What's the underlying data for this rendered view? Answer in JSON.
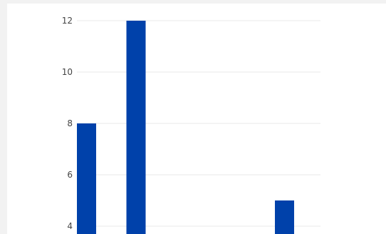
{
  "chart_data": {
    "type": "bar",
    "title": "",
    "xlabel": "",
    "ylabel": "",
    "bar_color": "#0041aa",
    "grid": true,
    "legend": "none",
    "yticks": [
      4,
      6,
      8,
      10,
      12
    ],
    "ytick_labels": [
      "4",
      "6",
      "8",
      "10",
      "12"
    ],
    "ylim_visible": [
      3.7,
      12.7
    ],
    "categories": [
      "",
      "",
      "",
      "",
      ""
    ],
    "values": [
      8,
      12,
      0,
      0,
      5
    ]
  }
}
